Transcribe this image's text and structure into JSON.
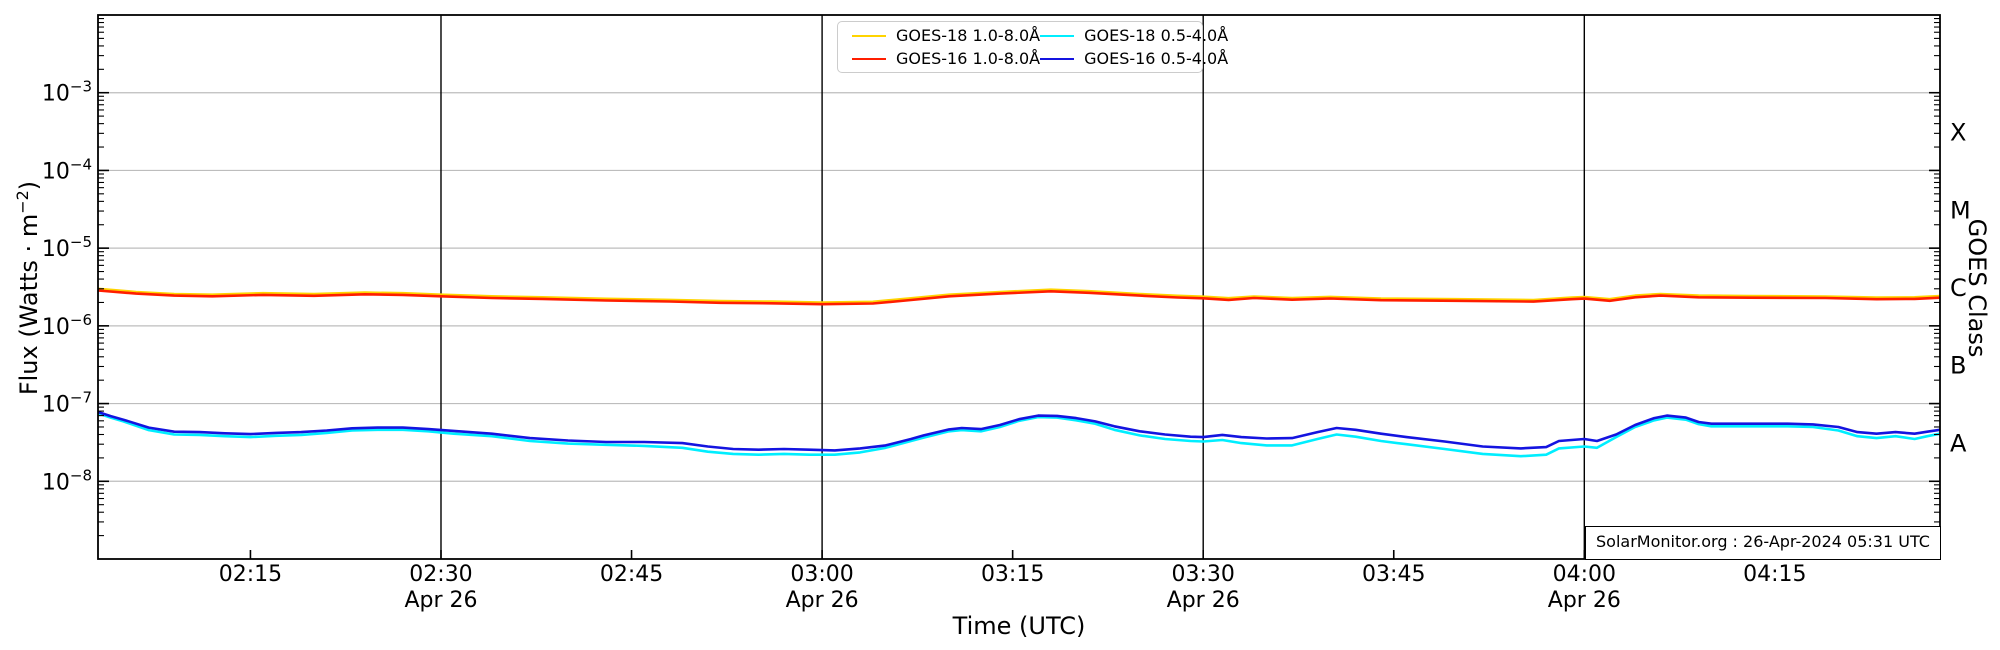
{
  "figure": {
    "source_text": "SolarMonitor.org : 26-Apr-2024 05:31 UTC"
  },
  "chart_data": {
    "type": "line",
    "title": "",
    "xlabel": "Time (UTC)",
    "ylabel": "Flux (Watts · m−2)",
    "ylabel_parts": {
      "pre": "Flux (Watts · m",
      "sup": "−2",
      "post": ")"
    },
    "ylabel_right": "GOES Class",
    "x_axis_note": "minutes since 00:00 UTC shown from 02:03 to 04:28 on 26-Apr-2024",
    "xlim_minutes": [
      123,
      268
    ],
    "ylim": [
      1e-09,
      0.01
    ],
    "ylim_log": [
      -9,
      -2
    ],
    "grid": "horizontal decade gridlines",
    "legend_position": "top-center",
    "x_ticks": [
      {
        "minutes": 135,
        "label": "02:15",
        "date": ""
      },
      {
        "minutes": 150,
        "label": "02:30",
        "date": "Apr 26"
      },
      {
        "minutes": 165,
        "label": "02:45",
        "date": ""
      },
      {
        "minutes": 180,
        "label": "03:00",
        "date": "Apr 26"
      },
      {
        "minutes": 195,
        "label": "03:15",
        "date": ""
      },
      {
        "minutes": 210,
        "label": "03:30",
        "date": "Apr 26"
      },
      {
        "minutes": 225,
        "label": "03:45",
        "date": ""
      },
      {
        "minutes": 240,
        "label": "04:00",
        "date": "Apr 26"
      },
      {
        "minutes": 255,
        "label": "04:15",
        "date": ""
      }
    ],
    "day_lines_minutes": [
      150,
      180,
      210,
      240
    ],
    "y_tick_exponents": [
      -3,
      -4,
      -5,
      -6,
      -7,
      -8
    ],
    "goes_class_labels": [
      {
        "label": "X",
        "log_center": -3.5
      },
      {
        "label": "M",
        "log_center": -4.5
      },
      {
        "label": "C",
        "log_center": -5.5
      },
      {
        "label": "B",
        "log_center": -6.5
      },
      {
        "label": "A",
        "log_center": -7.5
      }
    ],
    "colors": {
      "grid": "#bdbdbd",
      "day_line": "#000000",
      "spine": "#000000",
      "goes18_long": "#ffd400",
      "goes16_long": "#ff1e00",
      "goes18_short": "#00eeff",
      "goes16_short": "#1414e0"
    },
    "legend": {
      "entries": [
        {
          "label": "GOES-18 1.0-8.0Å",
          "color": "#ffd400"
        },
        {
          "label": "GOES-16 1.0-8.0Å",
          "color": "#ff1e00"
        },
        {
          "label": "GOES-18 0.5-4.0Å",
          "color": "#00eeff"
        },
        {
          "label": "GOES-16 0.5-4.0Å",
          "color": "#1414e0"
        }
      ]
    },
    "series": [
      {
        "name": "GOES-18 1.0-8.0Å",
        "color": "#ffd400",
        "points": [
          [
            123,
            3e-06
          ],
          [
            126,
            2.73e-06
          ],
          [
            129,
            2.57e-06
          ],
          [
            132,
            2.52e-06
          ],
          [
            136,
            2.63e-06
          ],
          [
            140,
            2.56e-06
          ],
          [
            144,
            2.68e-06
          ],
          [
            147,
            2.63e-06
          ],
          [
            150,
            2.52e-06
          ],
          [
            154,
            2.4e-06
          ],
          [
            158,
            2.33e-06
          ],
          [
            163,
            2.23e-06
          ],
          [
            168,
            2.16e-06
          ],
          [
            172,
            2.08e-06
          ],
          [
            176,
            2.05e-06
          ],
          [
            180,
            2e-06
          ],
          [
            184,
            2.04e-06
          ],
          [
            187,
            2.26e-06
          ],
          [
            190,
            2.52e-06
          ],
          [
            194,
            2.73e-06
          ],
          [
            198,
            2.92e-06
          ],
          [
            201,
            2.79e-06
          ],
          [
            205,
            2.57e-06
          ],
          [
            208,
            2.44e-06
          ],
          [
            210,
            2.37e-06
          ],
          [
            212,
            2.27e-06
          ],
          [
            214,
            2.39e-06
          ],
          [
            217,
            2.28e-06
          ],
          [
            220,
            2.36e-06
          ],
          [
            224,
            2.25e-06
          ],
          [
            230,
            2.2e-06
          ],
          [
            236,
            2.15e-06
          ],
          [
            239,
            2.31e-06
          ],
          [
            240,
            2.35e-06
          ],
          [
            242,
            2.2e-06
          ],
          [
            244,
            2.45e-06
          ],
          [
            246,
            2.57e-06
          ],
          [
            249,
            2.45e-06
          ],
          [
            253,
            2.42e-06
          ],
          [
            259,
            2.39e-06
          ],
          [
            263,
            2.31e-06
          ],
          [
            266,
            2.33e-06
          ],
          [
            268,
            2.42e-06
          ]
        ]
      },
      {
        "name": "GOES-16 1.0-8.0Å",
        "color": "#ff1e00",
        "points": [
          [
            123,
            2.85e-06
          ],
          [
            126,
            2.6e-06
          ],
          [
            129,
            2.45e-06
          ],
          [
            132,
            2.4e-06
          ],
          [
            136,
            2.5e-06
          ],
          [
            140,
            2.44e-06
          ],
          [
            144,
            2.55e-06
          ],
          [
            147,
            2.5e-06
          ],
          [
            150,
            2.4e-06
          ],
          [
            154,
            2.28e-06
          ],
          [
            158,
            2.22e-06
          ],
          [
            163,
            2.12e-06
          ],
          [
            168,
            2.06e-06
          ],
          [
            172,
            1.98e-06
          ],
          [
            176,
            1.95e-06
          ],
          [
            180,
            1.9e-06
          ],
          [
            184,
            1.94e-06
          ],
          [
            187,
            2.15e-06
          ],
          [
            190,
            2.4e-06
          ],
          [
            194,
            2.6e-06
          ],
          [
            198,
            2.78e-06
          ],
          [
            201,
            2.66e-06
          ],
          [
            205,
            2.45e-06
          ],
          [
            208,
            2.32e-06
          ],
          [
            210,
            2.26e-06
          ],
          [
            212,
            2.16e-06
          ],
          [
            214,
            2.28e-06
          ],
          [
            217,
            2.17e-06
          ],
          [
            220,
            2.25e-06
          ],
          [
            224,
            2.14e-06
          ],
          [
            230,
            2.1e-06
          ],
          [
            236,
            2.05e-06
          ],
          [
            239,
            2.2e-06
          ],
          [
            240,
            2.24e-06
          ],
          [
            242,
            2.1e-06
          ],
          [
            244,
            2.33e-06
          ],
          [
            246,
            2.45e-06
          ],
          [
            249,
            2.33e-06
          ],
          [
            253,
            2.3e-06
          ],
          [
            259,
            2.28e-06
          ],
          [
            263,
            2.2e-06
          ],
          [
            266,
            2.22e-06
          ],
          [
            268,
            2.3e-06
          ]
        ]
      },
      {
        "name": "GOES-18 0.5-4.0Å",
        "color": "#00eeff",
        "points": [
          [
            123,
            7.5e-08
          ],
          [
            124,
            6.6e-08
          ],
          [
            125,
            5.9e-08
          ],
          [
            127,
            4.55e-08
          ],
          [
            129,
            4e-08
          ],
          [
            131,
            3.95e-08
          ],
          [
            133,
            3.8e-08
          ],
          [
            135,
            3.7e-08
          ],
          [
            137,
            3.85e-08
          ],
          [
            139,
            3.95e-08
          ],
          [
            141,
            4.2e-08
          ],
          [
            143,
            4.5e-08
          ],
          [
            145,
            4.6e-08
          ],
          [
            147,
            4.6e-08
          ],
          [
            149,
            4.4e-08
          ],
          [
            151,
            4.1e-08
          ],
          [
            154,
            3.8e-08
          ],
          [
            157,
            3.3e-08
          ],
          [
            160,
            3.05e-08
          ],
          [
            163,
            2.95e-08
          ],
          [
            166,
            2.85e-08
          ],
          [
            169,
            2.7e-08
          ],
          [
            171,
            2.4e-08
          ],
          [
            173,
            2.25e-08
          ],
          [
            175,
            2.2e-08
          ],
          [
            177,
            2.25e-08
          ],
          [
            179,
            2.2e-08
          ],
          [
            181,
            2.2e-08
          ],
          [
            183,
            2.35e-08
          ],
          [
            185,
            2.7e-08
          ],
          [
            187,
            3.3e-08
          ],
          [
            188,
            3.65e-08
          ],
          [
            190,
            4.4e-08
          ],
          [
            191,
            4.55e-08
          ],
          [
            192.5,
            4.4e-08
          ],
          [
            194,
            5e-08
          ],
          [
            195.5,
            6e-08
          ],
          [
            197,
            6.7e-08
          ],
          [
            198.5,
            6.6e-08
          ],
          [
            200,
            6.1e-08
          ],
          [
            201.5,
            5.5e-08
          ],
          [
            203,
            4.6e-08
          ],
          [
            205,
            3.9e-08
          ],
          [
            207,
            3.5e-08
          ],
          [
            209,
            3.3e-08
          ],
          [
            210,
            3.25e-08
          ],
          [
            211.5,
            3.4e-08
          ],
          [
            213,
            3.1e-08
          ],
          [
            215,
            2.9e-08
          ],
          [
            217,
            2.9e-08
          ],
          [
            219,
            3.5e-08
          ],
          [
            220.5,
            4e-08
          ],
          [
            222,
            3.75e-08
          ],
          [
            224,
            3.3e-08
          ],
          [
            226,
            3e-08
          ],
          [
            229,
            2.6e-08
          ],
          [
            232,
            2.25e-08
          ],
          [
            235,
            2.1e-08
          ],
          [
            237,
            2.2e-08
          ],
          [
            238,
            2.65e-08
          ],
          [
            240,
            2.8e-08
          ],
          [
            241,
            2.7e-08
          ],
          [
            242.5,
            3.7e-08
          ],
          [
            244,
            5e-08
          ],
          [
            245.5,
            6.1e-08
          ],
          [
            246.5,
            6.6e-08
          ],
          [
            248,
            6.2e-08
          ],
          [
            249,
            5.45e-08
          ],
          [
            250,
            5.1e-08
          ],
          [
            253,
            5.1e-08
          ],
          [
            256,
            5.1e-08
          ],
          [
            258,
            5e-08
          ],
          [
            260,
            4.5e-08
          ],
          [
            261.5,
            3.8e-08
          ],
          [
            263,
            3.6e-08
          ],
          [
            264.5,
            3.8e-08
          ],
          [
            266,
            3.5e-08
          ],
          [
            267,
            3.8e-08
          ],
          [
            268,
            4.1e-08
          ]
        ]
      },
      {
        "name": "GOES-16 0.5-4.0Å",
        "color": "#1414e0",
        "points": [
          [
            123,
            7.8e-08
          ],
          [
            124,
            6.9e-08
          ],
          [
            125,
            6.2e-08
          ],
          [
            127,
            4.9e-08
          ],
          [
            129,
            4.35e-08
          ],
          [
            131,
            4.3e-08
          ],
          [
            133,
            4.15e-08
          ],
          [
            135,
            4.05e-08
          ],
          [
            137,
            4.2e-08
          ],
          [
            139,
            4.3e-08
          ],
          [
            141,
            4.5e-08
          ],
          [
            143,
            4.8e-08
          ],
          [
            145,
            4.9e-08
          ],
          [
            147,
            4.9e-08
          ],
          [
            149,
            4.7e-08
          ],
          [
            151,
            4.45e-08
          ],
          [
            154,
            4.1e-08
          ],
          [
            157,
            3.6e-08
          ],
          [
            160,
            3.35e-08
          ],
          [
            163,
            3.2e-08
          ],
          [
            166,
            3.2e-08
          ],
          [
            169,
            3.1e-08
          ],
          [
            171,
            2.8e-08
          ],
          [
            173,
            2.6e-08
          ],
          [
            175,
            2.55e-08
          ],
          [
            177,
            2.6e-08
          ],
          [
            179,
            2.55e-08
          ],
          [
            181,
            2.5e-08
          ],
          [
            183,
            2.65e-08
          ],
          [
            185,
            2.9e-08
          ],
          [
            187,
            3.5e-08
          ],
          [
            188,
            3.9e-08
          ],
          [
            190,
            4.65e-08
          ],
          [
            191,
            4.85e-08
          ],
          [
            192.5,
            4.7e-08
          ],
          [
            194,
            5.3e-08
          ],
          [
            195.5,
            6.3e-08
          ],
          [
            197,
            7e-08
          ],
          [
            198.5,
            6.95e-08
          ],
          [
            200,
            6.5e-08
          ],
          [
            201.5,
            5.9e-08
          ],
          [
            203,
            5.1e-08
          ],
          [
            205,
            4.4e-08
          ],
          [
            207,
            4e-08
          ],
          [
            209,
            3.75e-08
          ],
          [
            210,
            3.7e-08
          ],
          [
            211.5,
            3.95e-08
          ],
          [
            213,
            3.7e-08
          ],
          [
            215,
            3.55e-08
          ],
          [
            217,
            3.6e-08
          ],
          [
            219,
            4.3e-08
          ],
          [
            220.5,
            4.85e-08
          ],
          [
            222,
            4.6e-08
          ],
          [
            224,
            4.1e-08
          ],
          [
            226,
            3.7e-08
          ],
          [
            229,
            3.25e-08
          ],
          [
            232,
            2.8e-08
          ],
          [
            235,
            2.65e-08
          ],
          [
            237,
            2.75e-08
          ],
          [
            238,
            3.3e-08
          ],
          [
            240,
            3.5e-08
          ],
          [
            241,
            3.3e-08
          ],
          [
            242.5,
            4e-08
          ],
          [
            244,
            5.3e-08
          ],
          [
            245.5,
            6.5e-08
          ],
          [
            246.5,
            7e-08
          ],
          [
            248,
            6.6e-08
          ],
          [
            249,
            5.8e-08
          ],
          [
            250,
            5.5e-08
          ],
          [
            253,
            5.5e-08
          ],
          [
            256,
            5.5e-08
          ],
          [
            258,
            5.4e-08
          ],
          [
            260,
            5e-08
          ],
          [
            261.5,
            4.3e-08
          ],
          [
            263,
            4.1e-08
          ],
          [
            264.5,
            4.3e-08
          ],
          [
            266,
            4.1e-08
          ],
          [
            267,
            4.35e-08
          ],
          [
            268,
            4.6e-08
          ]
        ]
      }
    ]
  }
}
